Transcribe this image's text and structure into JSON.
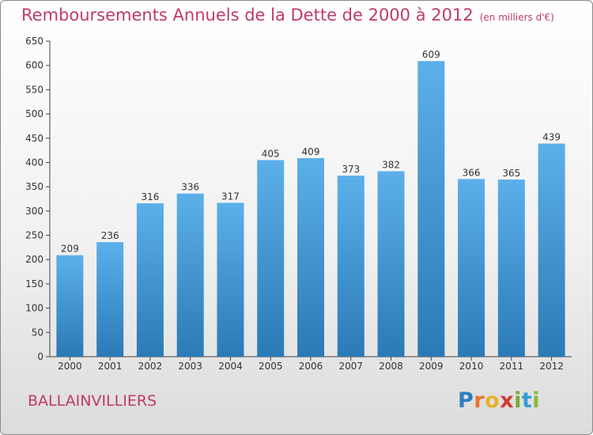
{
  "page": {
    "title": "Remboursements Annuels de la Dette de 2000 à 2012",
    "unit": "(en milliers d'€)",
    "city": "BALLAINVILLIERS",
    "logo": {
      "letters": [
        "P",
        "r",
        "o",
        "x",
        "i",
        "t",
        "i"
      ],
      "colors": [
        "#2e7ebf",
        "#e8732a",
        "#e8b12a",
        "#cf3b33",
        "#7aa832",
        "#2e9fd8",
        "#8bb83a"
      ]
    }
  },
  "chart_data": {
    "type": "bar",
    "categories": [
      "2000",
      "2001",
      "2002",
      "2003",
      "2004",
      "2005",
      "2006",
      "2007",
      "2008",
      "2009",
      "2010",
      "2011",
      "2012"
    ],
    "values": [
      209,
      236,
      316,
      336,
      317,
      405,
      409,
      373,
      382,
      609,
      366,
      365,
      439
    ],
    "ylim": [
      0,
      650
    ],
    "yticks": [
      0,
      50,
      100,
      150,
      200,
      250,
      300,
      350,
      400,
      450,
      500,
      550,
      600,
      650
    ],
    "grid": false,
    "colors": {
      "bar_top": "#5cb0ea",
      "bar_bottom": "#2a7ab6"
    }
  }
}
